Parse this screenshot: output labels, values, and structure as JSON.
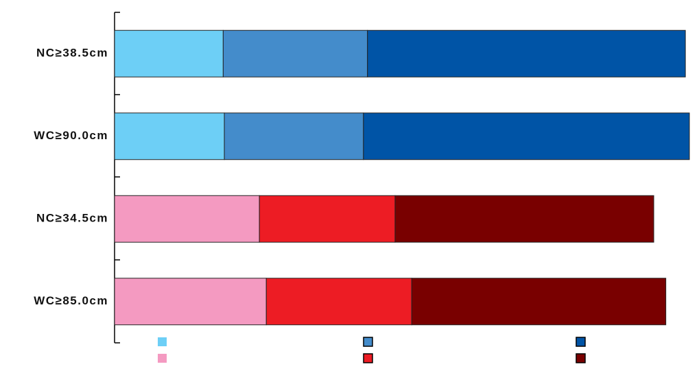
{
  "chart_data": {
    "type": "stacked-barh",
    "categories": [
      "NC≥38.5cm",
      "WC≥90.0cm",
      "NC≥34.5cm",
      "WC≥85.0cm"
    ],
    "xlim": [
      0,
      100
    ],
    "series": [
      {
        "values": [
          18.9,
          19.1,
          25.2,
          26.4
        ],
        "colors": [
          "#6dcff6",
          "#6dcff6",
          "#f49ac1",
          "#f49ac1"
        ]
      },
      {
        "values": [
          25.1,
          24.2,
          23.6,
          25.3
        ],
        "colors": [
          "#448ccb",
          "#448ccb",
          "#ed1c24",
          "#ed1c24"
        ]
      },
      {
        "values": [
          55.3,
          56.7,
          45.0,
          44.2
        ],
        "colors": [
          "#0054a6",
          "#0054a6",
          "#790000",
          "#790000"
        ]
      }
    ]
  }
}
